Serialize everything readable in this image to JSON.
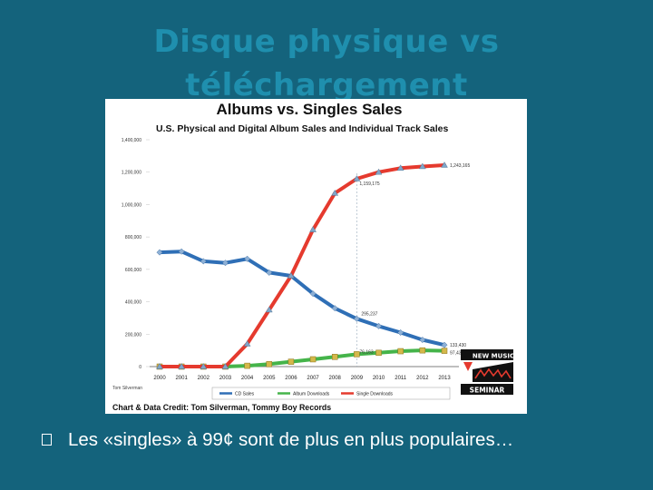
{
  "slide": {
    "title_line1": "Disque physique vs",
    "title_line2": "téléchargement",
    "bullet_text": "Les «singles» à 99¢ sont de plus en plus populaires…"
  },
  "colors": {
    "background": "#14637c",
    "title": "#1f8fae",
    "cd": "#2f6fb6",
    "album": "#45b44a",
    "single": "#e53a2e"
  },
  "chart_data": {
    "type": "line",
    "title": "Albums vs. Singles Sales",
    "subtitle": "U.S. Physical and Digital Album Sales and Individual Track Sales",
    "credit": "Chart & Data Credit: Tom Silverman, Tommy Boy Records",
    "source_note": "Tom Silverman",
    "logo_text": [
      "NEW MUSIC",
      "SEMINAR"
    ],
    "x": [
      "2000",
      "2001",
      "2002",
      "2003",
      "2004",
      "2005",
      "2006",
      "2007",
      "2008",
      "2009",
      "2010",
      "2011",
      "2012",
      "2013"
    ],
    "ylim": [
      0,
      1400000
    ],
    "yticks": [
      "1,400,000",
      "1,200,000",
      "1,000,000",
      "800,000",
      "600,000",
      "400,000",
      "200,000",
      "0"
    ],
    "series": [
      {
        "name": "CD Sales",
        "color": "#2f6fb6",
        "marker": "diamond",
        "values": [
          705000,
          710000,
          650000,
          640000,
          665000,
          580000,
          560000,
          450000,
          360000,
          295237,
          250000,
          210000,
          165000,
          133430
        ]
      },
      {
        "name": "Album Downloads",
        "color": "#45b44a",
        "marker": "square",
        "values": [
          0,
          0,
          0,
          0,
          5000,
          15000,
          30000,
          45000,
          60000,
          76163,
          85000,
          95000,
          100000,
          97431
        ]
      },
      {
        "name": "Single Downloads",
        "color": "#e53a2e",
        "marker": "triangle",
        "values": [
          0,
          0,
          0,
          0,
          140000,
          350000,
          560000,
          845000,
          1070000,
          1159175,
          1200000,
          1225000,
          1235000,
          1243165
        ]
      }
    ],
    "annotations": [
      "1,243,165",
      "1,159,175",
      "295,237",
      "133,430",
      "97,431",
      "76,163"
    ],
    "legend_position": "bottom",
    "grid": false
  }
}
